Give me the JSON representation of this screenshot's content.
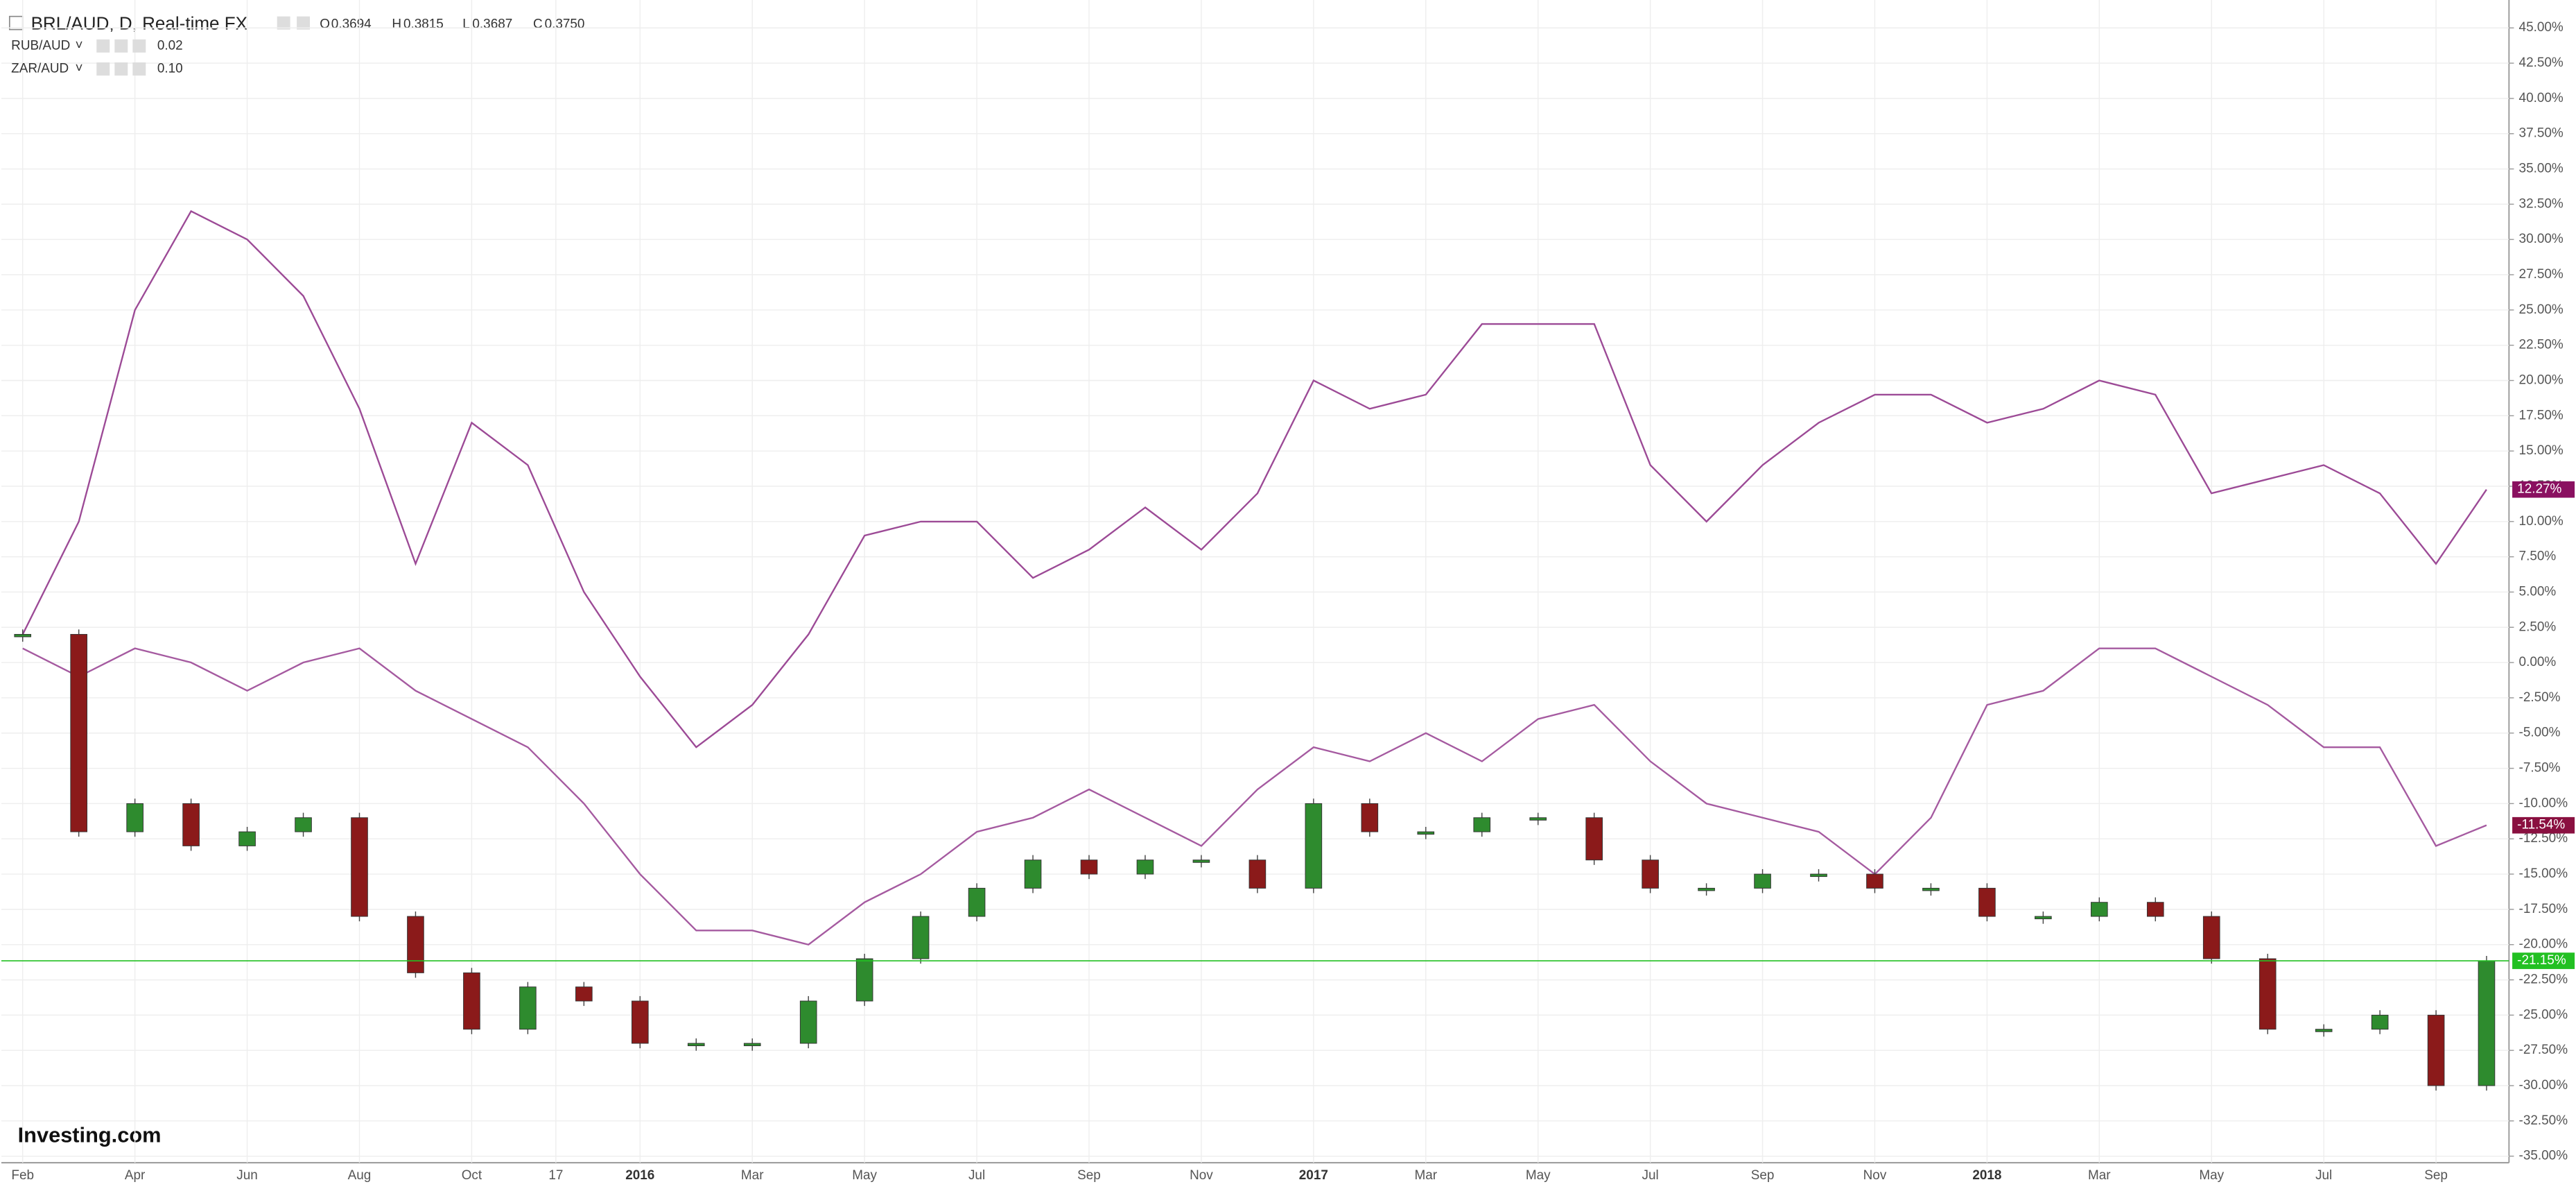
{
  "chart_data": {
    "type": "candlestick",
    "title": "BRL/AUD, D, Real-time FX",
    "ohlc": {
      "o_label": "O",
      "o": "0.3694",
      "h_label": "H",
      "h": "0.3815",
      "l_label": "L",
      "l": "0.3687",
      "c_label": "C",
      "c": "0.3750"
    },
    "logo": "Investing.com",
    "up_color": "#2e8b2e",
    "down_color": "#8b1a1a",
    "last_value_label": "-21.15%",
    "last_color": "#22c022",
    "x": [
      0,
      1,
      2,
      3,
      4,
      5,
      6,
      7,
      8,
      9,
      10,
      11,
      12,
      13,
      14,
      15,
      16,
      17,
      18,
      19,
      20,
      21,
      22,
      23,
      24,
      25,
      26,
      27,
      28,
      29,
      30,
      31,
      32,
      33,
      34,
      35,
      36,
      37,
      38,
      39,
      40,
      41,
      42,
      43,
      43.9
    ],
    "values": [
      2,
      -12,
      -10,
      -13,
      -12,
      -11,
      -18,
      -22,
      -26,
      -23,
      -24,
      -27,
      -27,
      -27,
      -24,
      -21,
      -18,
      -16,
      -14,
      -15,
      -14,
      -14,
      -16,
      -10,
      -12,
      -12,
      -11,
      -11,
      -14,
      -16,
      -16,
      -15,
      -15,
      -16,
      -16,
      -18,
      -18,
      -17,
      -18,
      -21,
      -26,
      -26,
      -25,
      -30,
      -21.15
    ],
    "series": [
      {
        "name": "RUB/AUD",
        "legend_value": "0.02",
        "color": "#9c4a96",
        "last_value_label": "12.27%",
        "values": [
          2,
          10,
          25,
          32,
          30,
          26,
          18,
          7,
          17,
          14,
          5,
          -1,
          -6,
          -3,
          2,
          9,
          10,
          10,
          6,
          8,
          11,
          8,
          12,
          20,
          18,
          19,
          24,
          24,
          24,
          14,
          10,
          14,
          17,
          19,
          19,
          17,
          18,
          20,
          19,
          12,
          13,
          14,
          12,
          7,
          12.27
        ]
      },
      {
        "name": "ZAR/AUD",
        "legend_value": "0.10",
        "color": "#a55aa0",
        "last_value_label": "-11.54%",
        "values": [
          1,
          -1,
          1,
          0,
          -2,
          0,
          1,
          -2,
          -4,
          -6,
          -10,
          -15,
          -19,
          -19,
          -20,
          -17,
          -15,
          -12,
          -11,
          -9,
          -11,
          -13,
          -9,
          -6,
          -7,
          -5,
          -7,
          -4,
          -3,
          -7,
          -10,
          -11,
          -12,
          -15,
          -11,
          -3,
          -2,
          1,
          1,
          -1,
          -3,
          -6,
          -6,
          -13,
          -11.54
        ]
      }
    ],
    "xlim": [
      -0.38,
      44.3
    ],
    "xticks": [
      {
        "value": 0,
        "label": "Feb"
      },
      {
        "value": 2,
        "label": "Apr"
      },
      {
        "value": 4,
        "label": "Jun"
      },
      {
        "value": 6,
        "label": "Aug"
      },
      {
        "value": 8,
        "label": "Oct"
      },
      {
        "value": 9.5,
        "label": "17"
      },
      {
        "value": 11,
        "label": "2016"
      },
      {
        "value": 13,
        "label": "Mar"
      },
      {
        "value": 15,
        "label": "May"
      },
      {
        "value": 17,
        "label": "Jul"
      },
      {
        "value": 19,
        "label": "Sep"
      },
      {
        "value": 21,
        "label": "Nov"
      },
      {
        "value": 23,
        "label": "2017"
      },
      {
        "value": 25,
        "label": "Mar"
      },
      {
        "value": 27,
        "label": "May"
      },
      {
        "value": 29,
        "label": "Jul"
      },
      {
        "value": 31,
        "label": "Sep"
      },
      {
        "value": 33,
        "label": "Nov"
      },
      {
        "value": 35,
        "label": "2018"
      },
      {
        "value": 37,
        "label": "Mar"
      },
      {
        "value": 39,
        "label": "May"
      },
      {
        "value": 41,
        "label": "Jul"
      },
      {
        "value": 43,
        "label": "Sep"
      }
    ],
    "ylim": [
      -35,
      45
    ],
    "yticks": [
      {
        "value": 45,
        "label": "45.00%"
      },
      {
        "value": 42.5,
        "label": "42.50%"
      },
      {
        "value": 40,
        "label": "40.00%"
      },
      {
        "value": 37.5,
        "label": "37.50%"
      },
      {
        "value": 35,
        "label": "35.00%"
      },
      {
        "value": 32.5,
        "label": "32.50%"
      },
      {
        "value": 30,
        "label": "30.00%"
      },
      {
        "value": 27.5,
        "label": "27.50%"
      },
      {
        "value": 25,
        "label": "25.00%"
      },
      {
        "value": 22.5,
        "label": "22.50%"
      },
      {
        "value": 20,
        "label": "20.00%"
      },
      {
        "value": 17.5,
        "label": "17.50%"
      },
      {
        "value": 15,
        "label": "15.00%"
      },
      {
        "value": 12.5,
        "label": "12.50%"
      },
      {
        "value": 10,
        "label": "10.00%"
      },
      {
        "value": 7.5,
        "label": "7.50%"
      },
      {
        "value": 5,
        "label": "5.00%"
      },
      {
        "value": 2.5,
        "label": "2.50%"
      },
      {
        "value": 0,
        "label": "0.00%"
      },
      {
        "value": -2.5,
        "label": "-2.50%"
      },
      {
        "value": -5,
        "label": "-5.00%"
      },
      {
        "value": -7.5,
        "label": "-7.50%"
      },
      {
        "value": -10,
        "label": "-10.00%"
      },
      {
        "value": -12.5,
        "label": "-12.50%"
      },
      {
        "value": -15,
        "label": "-15.00%"
      },
      {
        "value": -17.5,
        "label": "-17.50%"
      },
      {
        "value": -20,
        "label": "-20.00%"
      },
      {
        "value": -22.5,
        "label": "-22.50%"
      },
      {
        "value": -25,
        "label": "-25.00%"
      },
      {
        "value": -27.5,
        "label": "-27.50%"
      },
      {
        "value": -30,
        "label": "-30.00%"
      },
      {
        "value": -32.5,
        "label": "-32.50%"
      },
      {
        "value": -35,
        "label": "-35.00%"
      }
    ],
    "grid": true
  }
}
